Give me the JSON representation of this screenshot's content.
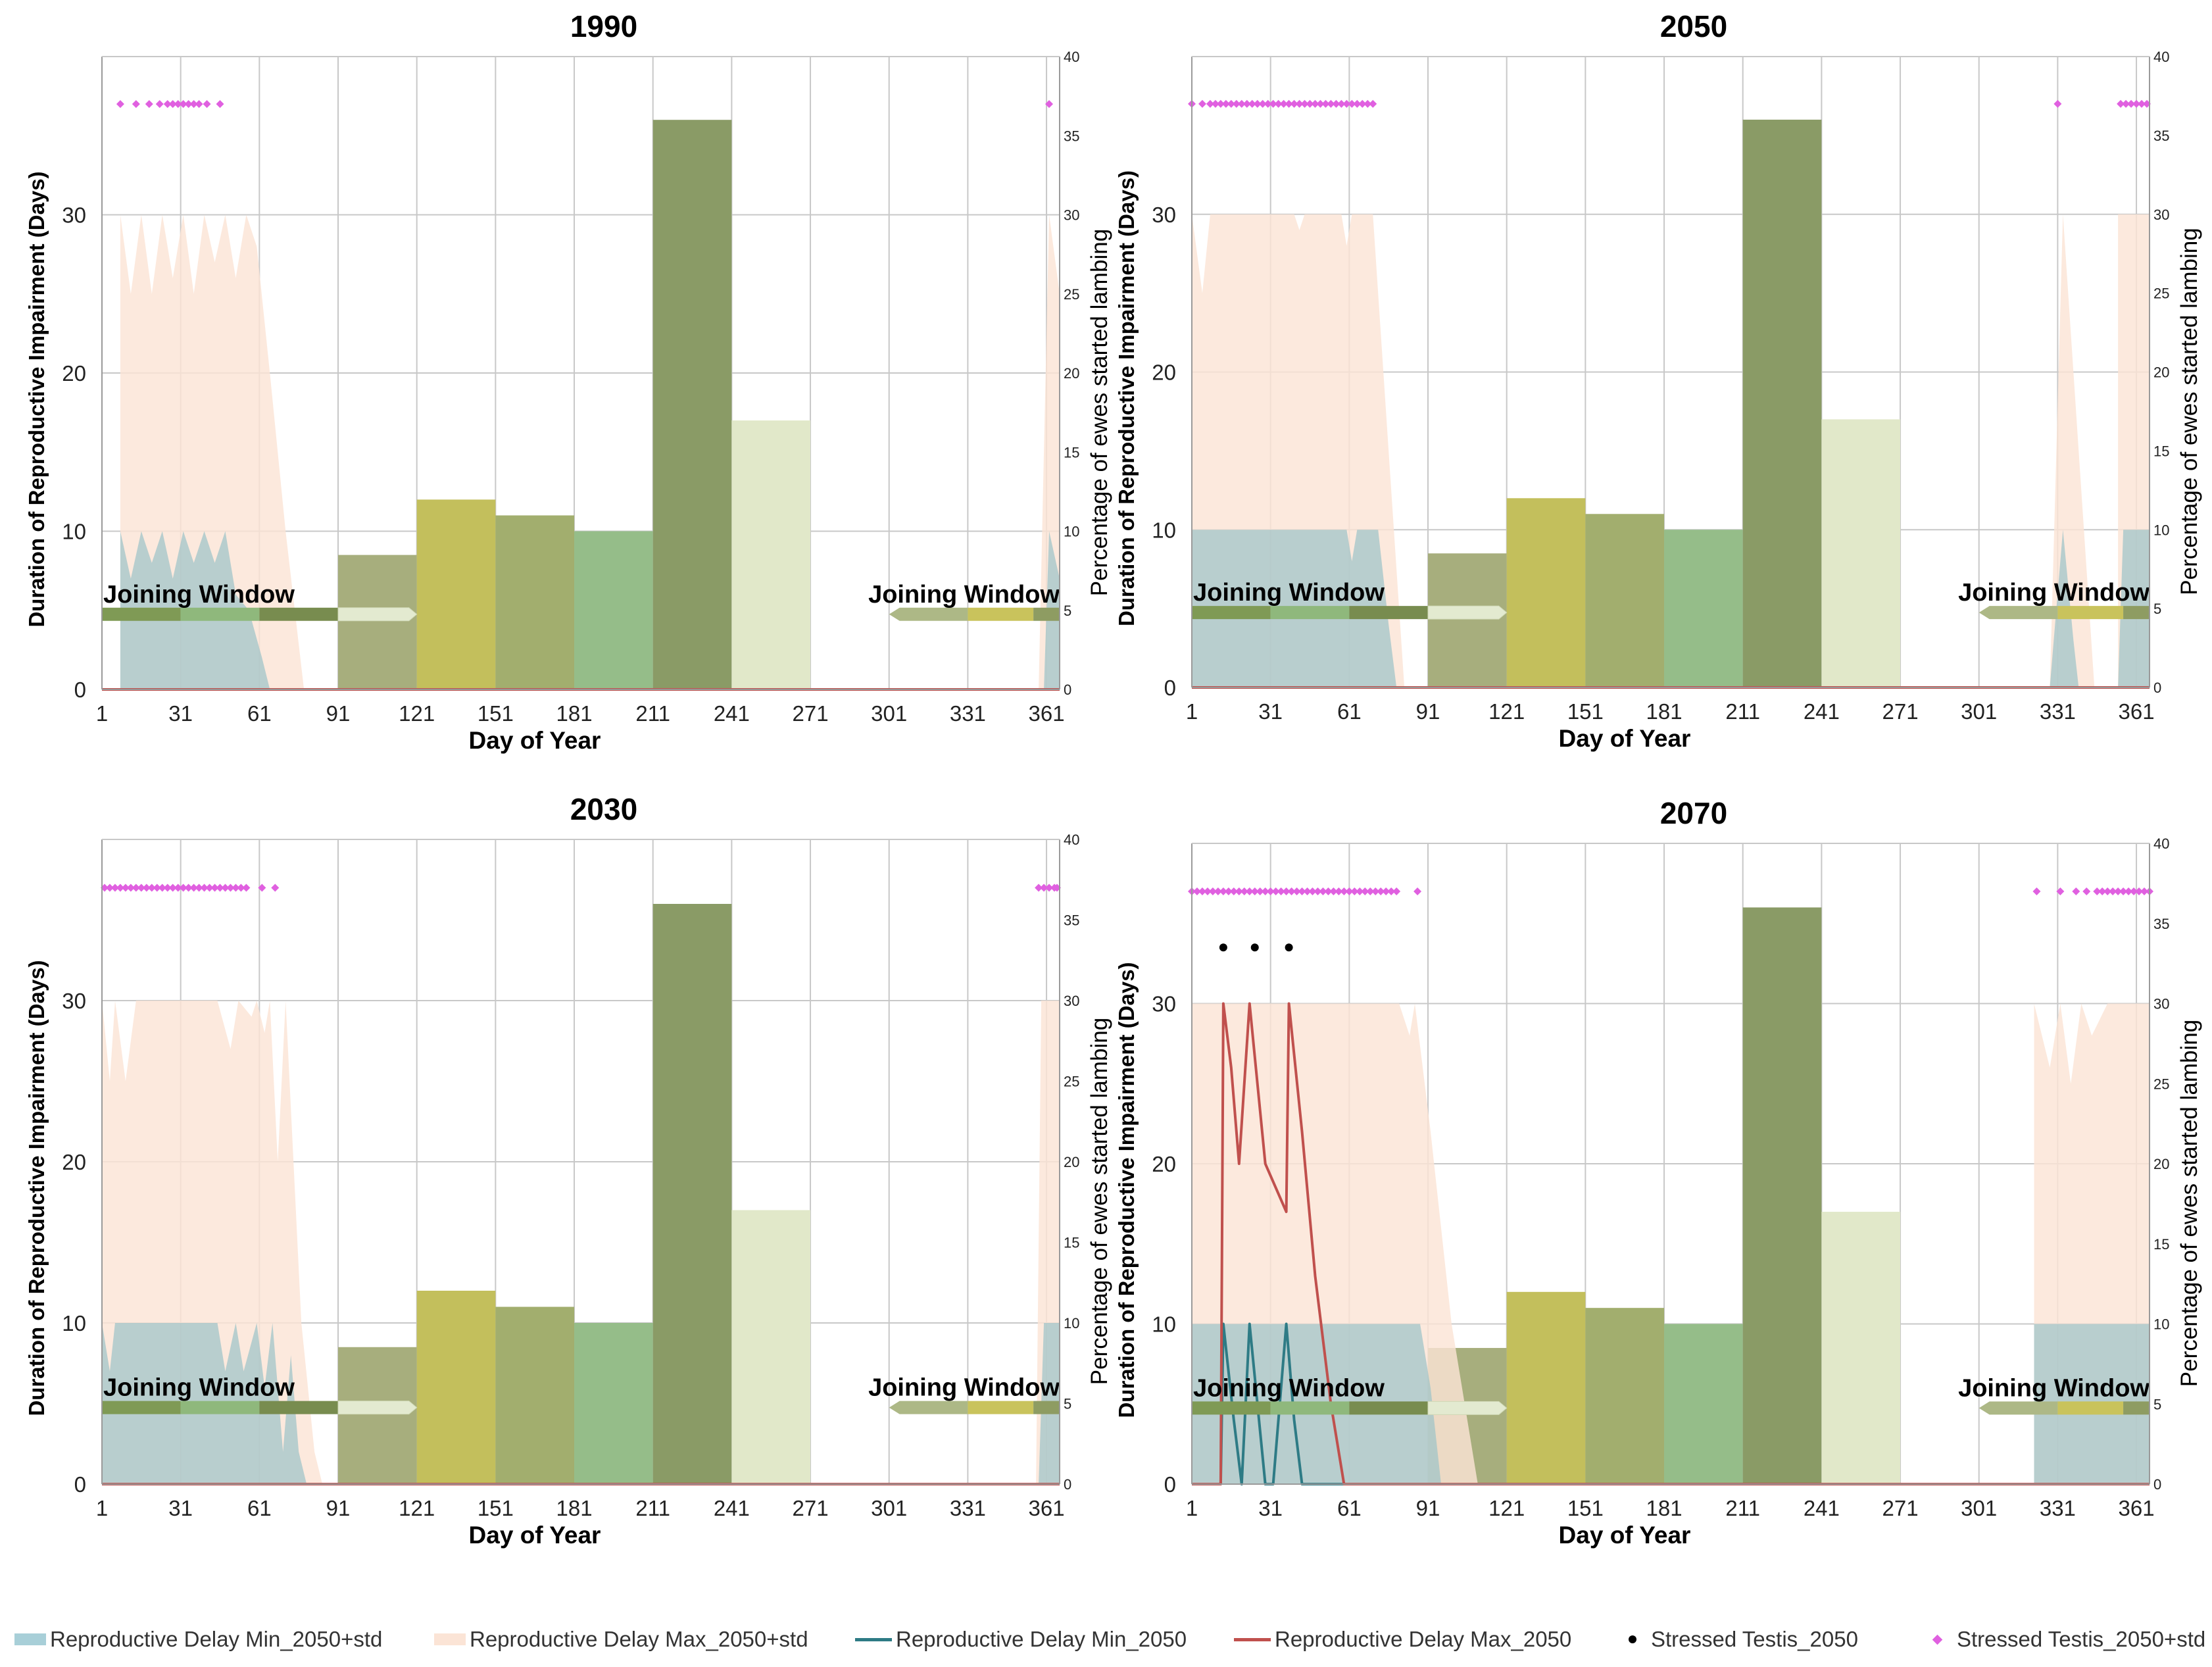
{
  "chart_data": [
    {
      "type": "bar",
      "title": "1990",
      "xlabel": "Day of Year",
      "ylabel": "Duration of Reproductive Impairment (Days)",
      "y2label": "Percentage of ewes started lambing",
      "xticks": [
        1,
        31,
        61,
        91,
        121,
        151,
        181,
        211,
        241,
        271,
        301,
        331,
        361
      ],
      "xlim": [
        1,
        366
      ],
      "ylim": [
        0,
        40
      ],
      "y2lim": [
        0,
        40
      ],
      "yticks": [
        0,
        10,
        20,
        30
      ],
      "y2ticks": [
        0,
        5,
        10,
        15,
        20,
        25,
        30,
        35,
        40
      ],
      "bars": [
        {
          "start": 91,
          "end": 121,
          "value": 8.5
        },
        {
          "start": 121,
          "end": 151,
          "value": 12
        },
        {
          "start": 151,
          "end": 181,
          "value": 11
        },
        {
          "start": 181,
          "end": 211,
          "value": 10
        },
        {
          "start": 211,
          "end": 241,
          "value": 36
        },
        {
          "start": 241,
          "end": 271,
          "value": 17
        }
      ],
      "joining_window_label": "Joining Window",
      "max_std_band": [
        [
          8,
          0
        ],
        [
          8,
          30
        ],
        [
          12,
          25
        ],
        [
          16,
          30
        ],
        [
          20,
          25
        ],
        [
          24,
          30
        ],
        [
          28,
          26
        ],
        [
          32,
          30
        ],
        [
          36,
          25
        ],
        [
          40,
          30
        ],
        [
          44,
          27
        ],
        [
          48,
          30
        ],
        [
          52,
          26
        ],
        [
          56,
          30
        ],
        [
          60,
          28
        ],
        [
          65,
          20
        ],
        [
          71,
          10
        ],
        [
          78,
          0
        ],
        [
          358,
          0
        ],
        [
          362,
          30
        ],
        [
          366,
          25
        ],
        [
          366,
          0
        ]
      ],
      "min_std_band": [
        [
          8,
          0
        ],
        [
          8,
          10
        ],
        [
          12,
          7
        ],
        [
          16,
          10
        ],
        [
          20,
          8
        ],
        [
          24,
          10
        ],
        [
          28,
          7
        ],
        [
          32,
          10
        ],
        [
          36,
          8
        ],
        [
          40,
          10
        ],
        [
          44,
          8
        ],
        [
          48,
          10
        ],
        [
          52,
          6
        ],
        [
          57,
          5
        ],
        [
          62,
          2
        ],
        [
          65,
          0
        ],
        [
          360,
          0
        ],
        [
          362,
          10
        ],
        [
          366,
          7
        ],
        [
          366,
          0
        ]
      ],
      "max_line": [
        [
          1,
          0
        ],
        [
          366,
          0
        ]
      ],
      "min_line": [
        [
          1,
          0
        ],
        [
          366,
          0
        ]
      ],
      "stressed_testis_std": [
        8,
        14,
        19,
        23,
        26,
        28,
        30,
        32,
        34,
        36,
        38,
        41,
        46,
        362
      ],
      "stressed_testis": []
    },
    {
      "type": "bar",
      "title": "2050",
      "xlabel": "Day of Year",
      "ylabel": "Duration of Reproductive Impairment (Days)",
      "y2label": "Percentage of ewes started lambing",
      "xticks": [
        1,
        31,
        61,
        91,
        121,
        151,
        181,
        211,
        241,
        271,
        301,
        331,
        361
      ],
      "xlim": [
        1,
        366
      ],
      "ylim": [
        0,
        40
      ],
      "y2lim": [
        0,
        40
      ],
      "yticks": [
        0,
        10,
        20,
        30
      ],
      "y2ticks": [
        0,
        5,
        10,
        15,
        20,
        25,
        30,
        35,
        40
      ],
      "bars": [
        {
          "start": 91,
          "end": 121,
          "value": 8.5
        },
        {
          "start": 121,
          "end": 151,
          "value": 12
        },
        {
          "start": 151,
          "end": 181,
          "value": 11
        },
        {
          "start": 181,
          "end": 211,
          "value": 10
        },
        {
          "start": 211,
          "end": 241,
          "value": 36
        },
        {
          "start": 241,
          "end": 271,
          "value": 17
        }
      ],
      "joining_window_label": "Joining Window",
      "max_std_band": [
        [
          1,
          0
        ],
        [
          1,
          30
        ],
        [
          5,
          25
        ],
        [
          8,
          30
        ],
        [
          40,
          30
        ],
        [
          42,
          29
        ],
        [
          44,
          30
        ],
        [
          58,
          30
        ],
        [
          60,
          28
        ],
        [
          62,
          30
        ],
        [
          70,
          30
        ],
        [
          76,
          15
        ],
        [
          82,
          0
        ],
        [
          328,
          0
        ],
        [
          333,
          30
        ],
        [
          341,
          10
        ],
        [
          345,
          0
        ],
        [
          354,
          0
        ],
        [
          354,
          30
        ],
        [
          366,
          30
        ],
        [
          366,
          0
        ]
      ],
      "min_std_band": [
        [
          1,
          0
        ],
        [
          1,
          10
        ],
        [
          60,
          10
        ],
        [
          62,
          8
        ],
        [
          64,
          10
        ],
        [
          72,
          10
        ],
        [
          76,
          4
        ],
        [
          79,
          0
        ],
        [
          328,
          0
        ],
        [
          333,
          10
        ],
        [
          337,
          3
        ],
        [
          339,
          0
        ],
        [
          354,
          0
        ],
        [
          356,
          10
        ],
        [
          366,
          10
        ],
        [
          366,
          0
        ]
      ],
      "max_line": [
        [
          1,
          0
        ],
        [
          366,
          0
        ]
      ],
      "min_line": [
        [
          1,
          0
        ],
        [
          366,
          0
        ]
      ],
      "stressed_testis_std": [
        1,
        5,
        8,
        10,
        12,
        14,
        16,
        18,
        20,
        22,
        24,
        26,
        28,
        30,
        32,
        34,
        36,
        38,
        40,
        42,
        44,
        46,
        48,
        50,
        52,
        54,
        56,
        58,
        60,
        62,
        64,
        66,
        68,
        70,
        331,
        355,
        357,
        359,
        361,
        363,
        365
      ],
      "stressed_testis": []
    },
    {
      "type": "bar",
      "title": "2030",
      "xlabel": "Day of Year",
      "ylabel": "Duration of Reproductive Impairment (Days)",
      "y2label": "Percentage of ewes started lambing",
      "xticks": [
        1,
        31,
        61,
        91,
        121,
        151,
        181,
        211,
        241,
        271,
        301,
        331,
        361
      ],
      "xlim": [
        1,
        366
      ],
      "ylim": [
        0,
        40
      ],
      "y2lim": [
        0,
        40
      ],
      "yticks": [
        0,
        10,
        20,
        30
      ],
      "y2ticks": [
        0,
        5,
        10,
        15,
        20,
        25,
        30,
        35,
        40
      ],
      "bars": [
        {
          "start": 91,
          "end": 121,
          "value": 8.5
        },
        {
          "start": 121,
          "end": 151,
          "value": 12
        },
        {
          "start": 151,
          "end": 181,
          "value": 11
        },
        {
          "start": 181,
          "end": 211,
          "value": 10
        },
        {
          "start": 211,
          "end": 241,
          "value": 36
        },
        {
          "start": 241,
          "end": 271,
          "value": 17
        }
      ],
      "joining_window_label": "Joining Window",
      "max_std_band": [
        [
          1,
          0
        ],
        [
          1,
          30
        ],
        [
          4,
          25
        ],
        [
          6,
          30
        ],
        [
          10,
          25
        ],
        [
          14,
          30
        ],
        [
          22,
          30
        ],
        [
          30,
          30
        ],
        [
          45,
          30
        ],
        [
          50,
          27
        ],
        [
          53,
          30
        ],
        [
          58,
          29
        ],
        [
          60,
          30
        ],
        [
          63,
          28
        ],
        [
          65,
          30
        ],
        [
          68,
          20
        ],
        [
          71,
          30
        ],
        [
          74,
          20
        ],
        [
          77,
          10
        ],
        [
          82,
          2
        ],
        [
          85,
          0
        ],
        [
          357,
          0
        ],
        [
          359,
          30
        ],
        [
          366,
          30
        ],
        [
          366,
          0
        ]
      ],
      "min_std_band": [
        [
          1,
          0
        ],
        [
          1,
          10
        ],
        [
          4,
          7
        ],
        [
          6,
          10
        ],
        [
          45,
          10
        ],
        [
          48,
          7
        ],
        [
          52,
          10
        ],
        [
          55,
          7
        ],
        [
          60,
          10
        ],
        [
          63,
          6
        ],
        [
          66,
          10
        ],
        [
          70,
          2
        ],
        [
          73,
          8
        ],
        [
          76,
          2
        ],
        [
          79,
          0
        ],
        [
          358,
          0
        ],
        [
          360,
          10
        ],
        [
          366,
          10
        ],
        [
          366,
          0
        ]
      ],
      "max_line": [
        [
          1,
          0
        ],
        [
          366,
          0
        ]
      ],
      "min_line": [
        [
          1,
          0
        ],
        [
          366,
          0
        ]
      ],
      "stressed_testis_std": [
        2,
        4,
        6,
        8,
        10,
        12,
        14,
        16,
        18,
        20,
        22,
        24,
        26,
        28,
        30,
        32,
        34,
        36,
        38,
        40,
        42,
        44,
        46,
        48,
        50,
        52,
        54,
        56,
        62,
        67,
        358,
        360,
        362,
        364,
        365
      ],
      "stressed_testis": []
    },
    {
      "type": "bar",
      "title": "2070",
      "xlabel": "Day of Year",
      "ylabel": "Duration of Reproductive Impairment (Days)",
      "y2label": "Percentage of ewes started lambing",
      "xticks": [
        1,
        31,
        61,
        91,
        121,
        151,
        181,
        211,
        241,
        271,
        301,
        331,
        361
      ],
      "xlim": [
        1,
        366
      ],
      "ylim": [
        0,
        40
      ],
      "y2lim": [
        0,
        40
      ],
      "yticks": [
        0,
        10,
        20,
        30
      ],
      "y2ticks": [
        0,
        5,
        10,
        15,
        20,
        25,
        30,
        35,
        40
      ],
      "bars": [
        {
          "start": 91,
          "end": 121,
          "value": 8.5
        },
        {
          "start": 121,
          "end": 151,
          "value": 12
        },
        {
          "start": 151,
          "end": 181,
          "value": 11
        },
        {
          "start": 181,
          "end": 211,
          "value": 10
        },
        {
          "start": 211,
          "end": 241,
          "value": 36
        },
        {
          "start": 241,
          "end": 271,
          "value": 17
        }
      ],
      "joining_window_label": "Joining Window",
      "max_std_band": [
        [
          1,
          0
        ],
        [
          1,
          30
        ],
        [
          80,
          30
        ],
        [
          84,
          28
        ],
        [
          86,
          30
        ],
        [
          92,
          22
        ],
        [
          100,
          10
        ],
        [
          110,
          0
        ],
        [
          322,
          0
        ],
        [
          322,
          30
        ],
        [
          328,
          26
        ],
        [
          332,
          30
        ],
        [
          336,
          25
        ],
        [
          340,
          30
        ],
        [
          344,
          28
        ],
        [
          350,
          30
        ],
        [
          366,
          30
        ],
        [
          366,
          0
        ]
      ],
      "min_std_band": [
        [
          1,
          0
        ],
        [
          1,
          10
        ],
        [
          88,
          10
        ],
        [
          92,
          6
        ],
        [
          96,
          0
        ],
        [
          322,
          0
        ],
        [
          322,
          10
        ],
        [
          366,
          10
        ],
        [
          366,
          0
        ]
      ],
      "max_line": [
        [
          1,
          0
        ],
        [
          12,
          0
        ],
        [
          13,
          30
        ],
        [
          16,
          26
        ],
        [
          19,
          20
        ],
        [
          23,
          30
        ],
        [
          29,
          20
        ],
        [
          37,
          17
        ],
        [
          38,
          30
        ],
        [
          43,
          22
        ],
        [
          48,
          13
        ],
        [
          54,
          5
        ],
        [
          59,
          0
        ],
        [
          366,
          0
        ]
      ],
      "min_line": [
        [
          1,
          0
        ],
        [
          12,
          0
        ],
        [
          13,
          10
        ],
        [
          17,
          4
        ],
        [
          20,
          0
        ],
        [
          23,
          10
        ],
        [
          29,
          0
        ],
        [
          32,
          0
        ],
        [
          37,
          10
        ],
        [
          40,
          4
        ],
        [
          43,
          0
        ],
        [
          366,
          0
        ]
      ],
      "stressed_testis_std": [
        1,
        3,
        5,
        7,
        9,
        11,
        13,
        15,
        17,
        19,
        21,
        23,
        25,
        27,
        29,
        31,
        33,
        35,
        37,
        39,
        41,
        43,
        45,
        47,
        49,
        51,
        53,
        55,
        57,
        59,
        61,
        63,
        65,
        67,
        69,
        71,
        73,
        75,
        77,
        79,
        87,
        323,
        332,
        338,
        342,
        346,
        348,
        350,
        352,
        354,
        356,
        358,
        360,
        362,
        364,
        366
      ],
      "stressed_testis": [
        13,
        25,
        38
      ]
    }
  ],
  "legend": [
    {
      "label": "Reproductive Delay Min_2050+std",
      "kind": "fill",
      "color": "#a8cfd8"
    },
    {
      "label": "Reproductive Delay Max_2050+std",
      "kind": "fill",
      "color": "#fbe4d6"
    },
    {
      "label": "Reproductive Delay Min_2050",
      "kind": "line",
      "color": "#2e7b85"
    },
    {
      "label": "Reproductive Delay Max_2050",
      "kind": "line",
      "color": "#c0504d"
    },
    {
      "label": "Stressed Testis_2050",
      "kind": "dot",
      "color": "#000000"
    },
    {
      "label": "Stressed Testis_2050+std",
      "kind": "diamond",
      "color": "#e060e0"
    }
  ],
  "colors": {
    "bars": [
      "#a7ae7d",
      "#c3bf5c",
      "#a2ae6e",
      "#95bd89",
      "#8a9b66",
      "#e1e8c9"
    ],
    "joining_segments": [
      "#7f9a55",
      "#8fb87c",
      "#788c4f",
      "#e3ead0",
      "#adb886",
      "#c9c35c"
    ],
    "max_band": "#fbe4d6",
    "min_band": "#9ec4c7",
    "max_line": "#c0504d",
    "min_line": "#2e7b85",
    "stressed_std": "#e060e0",
    "stressed": "#000000",
    "grid": "#c8c8c8"
  }
}
